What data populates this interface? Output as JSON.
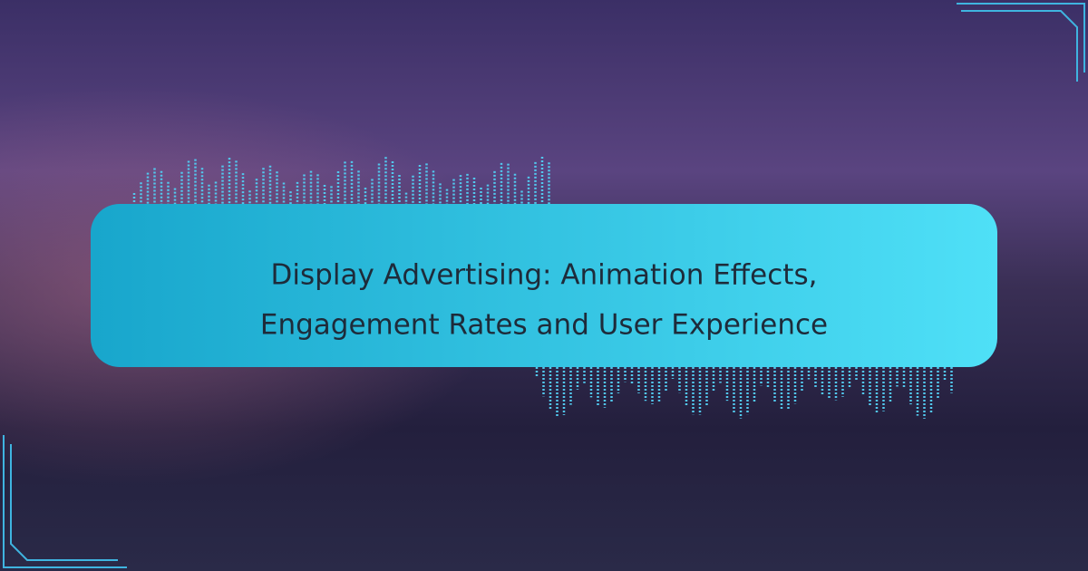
{
  "title": {
    "lines": [
      "Display Advertising: Animation Effects,",
      "Engagement Rates and User Experience"
    ]
  }
}
